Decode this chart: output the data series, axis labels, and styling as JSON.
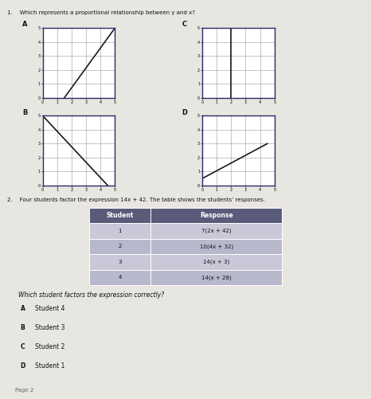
{
  "title_q1": "1.    Which represents a proportional relationship between y and x?",
  "title_q2": "2.    Four students factor the expression 14x + 42. The table shows the students’ responses.",
  "q2_question": "Which student factors the expression correctly?",
  "bg_color": "#e8e6e0",
  "graph_bg": "#ffffff",
  "graph_border_color": "#2a2a6a",
  "graph_line_color": "#1a1a1a",
  "grid_color": "#999999",
  "graph_A_line": [
    [
      1.5,
      0
    ],
    [
      5,
      5
    ]
  ],
  "graph_B_line": [
    [
      0,
      5
    ],
    [
      4.5,
      0
    ]
  ],
  "graph_C_line": [
    [
      2,
      0
    ],
    [
      2,
      6
    ]
  ],
  "graph_D_line": [
    [
      0,
      0.5
    ],
    [
      4.5,
      3.0
    ]
  ],
  "table_headers": [
    "Student",
    "Response"
  ],
  "table_rows": [
    [
      "1",
      "7(2x + 42)"
    ],
    [
      "2",
      "10(4x + 32)"
    ],
    [
      "3",
      "14(x + 3)"
    ],
    [
      "4",
      "14(x + 28)"
    ]
  ],
  "mc_options": [
    [
      "A",
      "Student 4"
    ],
    [
      "B",
      "Student 3"
    ],
    [
      "C",
      "Student 2"
    ],
    [
      "D",
      "Student 1"
    ]
  ],
  "axis_max": 5,
  "font_color": "#111111",
  "header_bg": "#5a5a7a",
  "header_fg": "#ffffff",
  "row_bg1": "#c8c8d8",
  "row_bg2": "#b8b8cc"
}
